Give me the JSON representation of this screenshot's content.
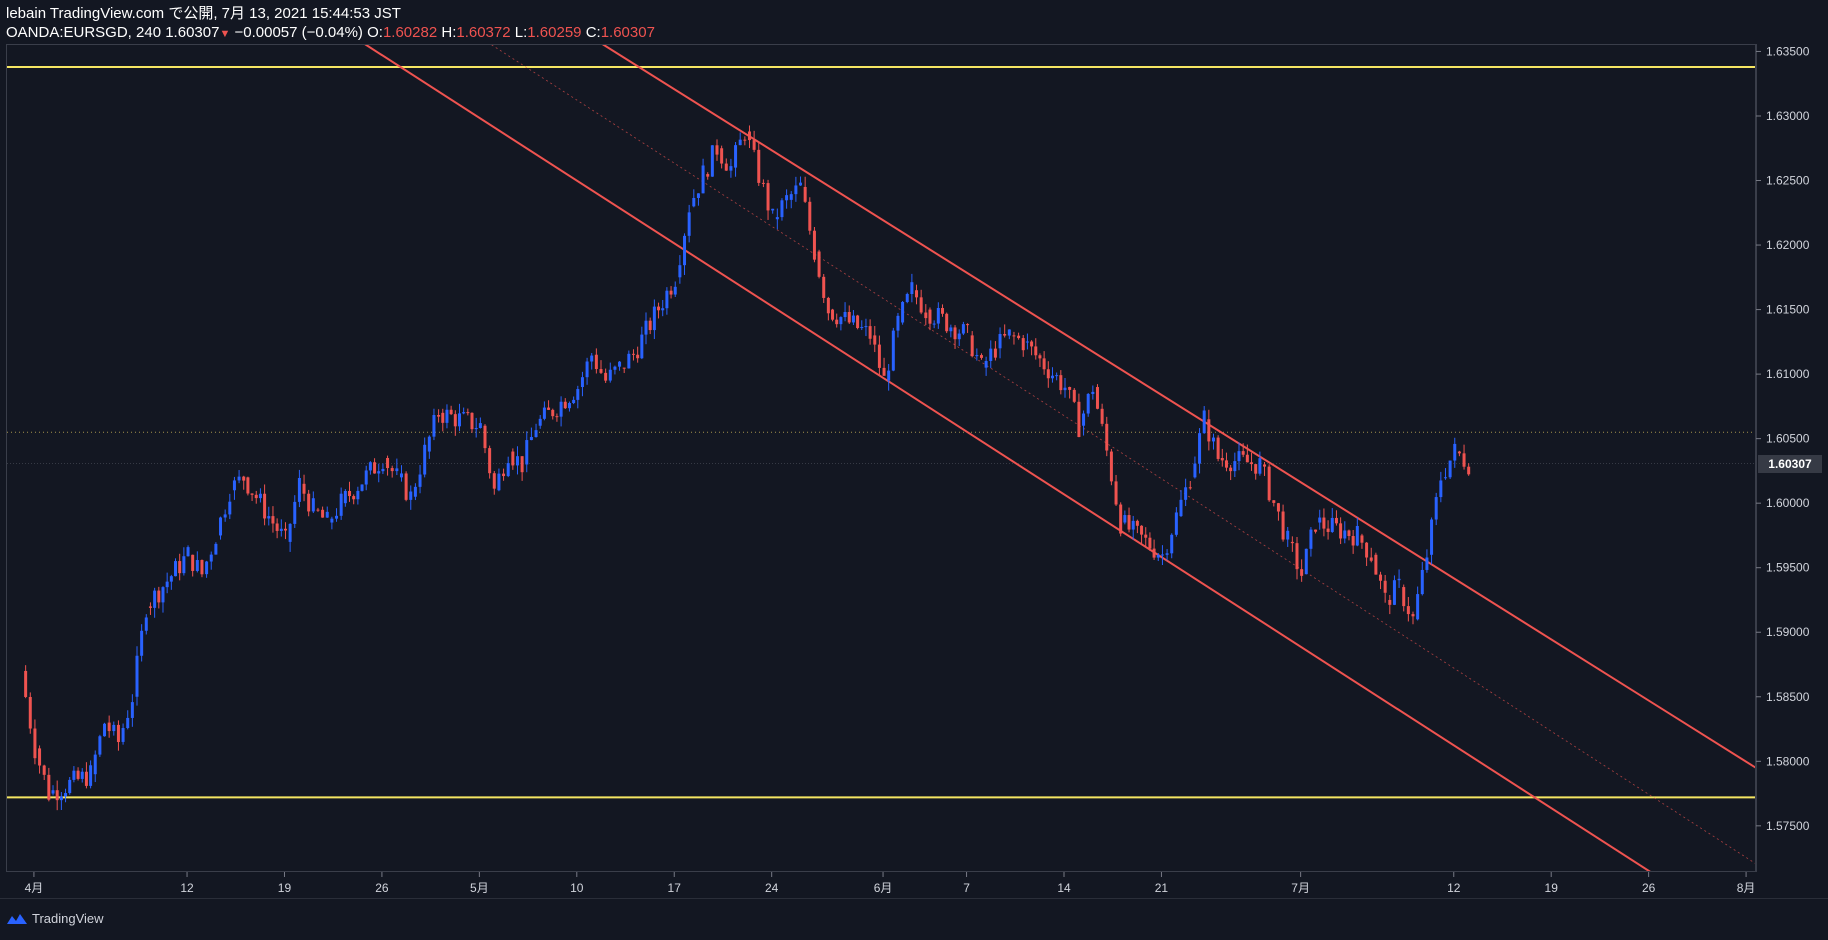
{
  "header": {
    "line1": "lebain TradingView.com で公開, 7月 13, 2021 15:44:53 JST",
    "symbol": "OANDA:EURSGD, 240 1.60307",
    "change": "−0.00057 (−0.04%)",
    "o_label": "O:",
    "o_value": "1.60282",
    "h_label": "H:",
    "h_value": "1.60372",
    "l_label": "L:",
    "l_value": "1.60259",
    "c_label": "C:",
    "c_value": "1.60307"
  },
  "colors": {
    "background": "#131722",
    "up": "#2962ff",
    "down": "#ef5350",
    "support_resistance": "#f5e663",
    "channel": "#ef5350",
    "grid": "#2a2e39"
  },
  "footer": {
    "brand": "TradingView",
    "logo_icon": "tradingview-logo-icon"
  },
  "chart_data": {
    "type": "candlestick",
    "symbol": "OANDA:EURSGD",
    "interval": "240",
    "last_price": "1.60307",
    "ylim": [
      1.5715,
      1.6355
    ],
    "y_ticks": [
      "1.63500",
      "1.63000",
      "1.62500",
      "1.62000",
      "1.61500",
      "1.61000",
      "1.60500",
      "1.60307",
      "1.60000",
      "1.59500",
      "1.59000",
      "1.58500",
      "1.58000",
      "1.57500"
    ],
    "x_ticks": [
      "4月",
      "12",
      "19",
      "26",
      "5月",
      "10",
      "17",
      "24",
      "6月",
      "7",
      "14",
      "21",
      "7月",
      "12",
      "19",
      "26",
      "8月"
    ],
    "x_tick_dates": [
      "2021-04-01",
      "2021-04-12",
      "2021-04-19",
      "2021-04-26",
      "2021-05-03",
      "2021-05-10",
      "2021-05-17",
      "2021-05-24",
      "2021-06-01",
      "2021-06-07",
      "2021-06-14",
      "2021-06-21",
      "2021-07-01",
      "2021-07-12",
      "2021-07-19",
      "2021-07-26",
      "2021-08-02"
    ],
    "horizontal_lines": [
      {
        "label": "resistance",
        "price": 1.6338
      },
      {
        "label": "support",
        "price": 1.5772
      },
      {
        "label": "dotted",
        "price": 1.6055
      }
    ],
    "channel": {
      "upper": {
        "p1": [
          "2021-05-20",
          1.63
        ],
        "p2": [
          "2021-08-01",
          1.5806
        ]
      },
      "middle": {
        "p1": [
          "2021-05-20",
          1.6242
        ],
        "p2": [
          "2021-08-01",
          1.5732
        ]
      },
      "lower": {
        "p1": [
          "2021-05-20",
          1.618
        ],
        "p2": [
          "2021-08-01",
          1.5673
        ]
      }
    },
    "price_path": [
      [
        "2021-03-31",
        1.587
      ],
      [
        "2021-04-01",
        1.581
      ],
      [
        "2021-04-02",
        1.5775
      ],
      [
        "2021-04-05",
        1.579
      ],
      [
        "2021-04-06",
        1.583
      ],
      [
        "2021-04-07",
        1.5815
      ],
      [
        "2021-04-08",
        1.585
      ],
      [
        "2021-04-09",
        1.592
      ],
      [
        "2021-04-12",
        1.596
      ],
      [
        "2021-04-13",
        1.5945
      ],
      [
        "2021-04-14",
        1.5975
      ],
      [
        "2021-04-15",
        1.601
      ],
      [
        "2021-04-16",
        1.602
      ],
      [
        "2021-04-19",
        1.597
      ],
      [
        "2021-04-20",
        1.6015
      ],
      [
        "2021-04-21",
        1.5995
      ],
      [
        "2021-04-22",
        1.5985
      ],
      [
        "2021-04-23",
        1.6
      ],
      [
        "2021-04-26",
        1.6035
      ],
      [
        "2021-04-27",
        1.602
      ],
      [
        "2021-04-28",
        1.6005
      ],
      [
        "2021-04-29",
        1.604
      ],
      [
        "2021-04-30",
        1.607
      ],
      [
        "2021-05-03",
        1.606
      ],
      [
        "2021-05-04",
        1.601
      ],
      [
        "2021-05-05",
        1.604
      ],
      [
        "2021-05-06",
        1.603
      ],
      [
        "2021-05-07",
        1.606
      ],
      [
        "2021-05-10",
        1.609
      ],
      [
        "2021-05-11",
        1.6115
      ],
      [
        "2021-05-12",
        1.6095
      ],
      [
        "2021-05-13",
        1.6105
      ],
      [
        "2021-05-14",
        1.6115
      ],
      [
        "2021-05-17",
        1.6175
      ],
      [
        "2021-05-18",
        1.623
      ],
      [
        "2021-05-19",
        1.6255
      ],
      [
        "2021-05-20",
        1.6275
      ],
      [
        "2021-05-21",
        1.626
      ],
      [
        "2021-05-22",
        1.6288
      ],
      [
        "2021-05-24",
        1.622
      ],
      [
        "2021-05-25",
        1.6235
      ],
      [
        "2021-05-26",
        1.6245
      ],
      [
        "2021-05-27",
        1.6195
      ],
      [
        "2021-05-28",
        1.615
      ],
      [
        "2021-05-31",
        1.613
      ],
      [
        "2021-06-01",
        1.6095
      ],
      [
        "2021-06-02",
        1.614
      ],
      [
        "2021-06-03",
        1.6165
      ],
      [
        "2021-06-04",
        1.615
      ],
      [
        "2021-06-07",
        1.613
      ],
      [
        "2021-06-08",
        1.6105
      ],
      [
        "2021-06-09",
        1.612
      ],
      [
        "2021-06-10",
        1.613
      ],
      [
        "2021-06-11",
        1.6125
      ],
      [
        "2021-06-14",
        1.609
      ],
      [
        "2021-06-15",
        1.606
      ],
      [
        "2021-06-16",
        1.609
      ],
      [
        "2021-06-17",
        1.604
      ],
      [
        "2021-06-18",
        1.5985
      ],
      [
        "2021-06-21",
        1.596
      ],
      [
        "2021-06-22",
        1.599
      ],
      [
        "2021-06-23",
        1.602
      ],
      [
        "2021-06-24",
        1.6065
      ],
      [
        "2021-06-25",
        1.6035
      ],
      [
        "2021-06-28",
        1.603
      ],
      [
        "2021-06-29",
        1.6
      ],
      [
        "2021-06-30",
        1.597
      ],
      [
        "2021-07-01",
        1.5945
      ],
      [
        "2021-07-02",
        1.5985
      ],
      [
        "2021-07-05",
        1.5975
      ],
      [
        "2021-07-06",
        1.596
      ],
      [
        "2021-07-07",
        1.5925
      ],
      [
        "2021-07-08",
        1.5935
      ],
      [
        "2021-07-09",
        1.591
      ],
      [
        "2021-07-10",
        1.596
      ],
      [
        "2021-07-11",
        1.602
      ],
      [
        "2021-07-12",
        1.604
      ],
      [
        "2021-07-13",
        1.6031
      ]
    ]
  }
}
